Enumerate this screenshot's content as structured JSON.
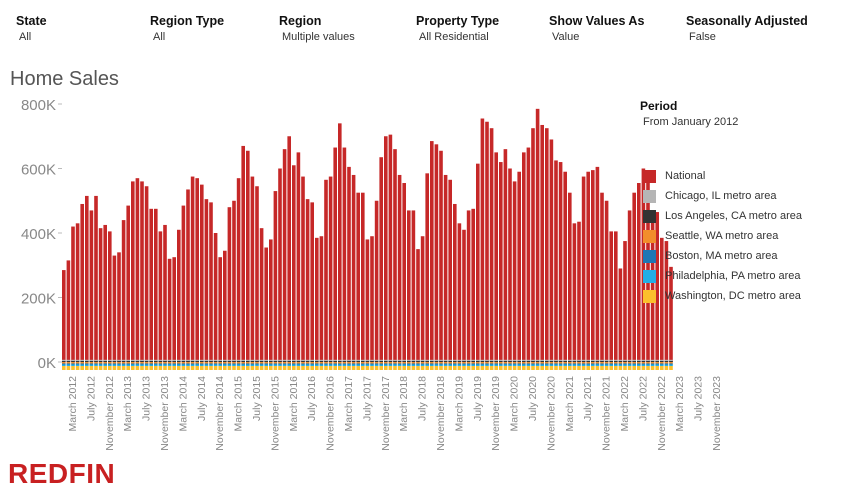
{
  "filters": [
    {
      "label": "State",
      "value": "All"
    },
    {
      "label": "Region Type",
      "value": "All"
    },
    {
      "label": "Region",
      "value": "Multiple values"
    },
    {
      "label": "Property Type",
      "value": "All Residential"
    },
    {
      "label": "Show Values As",
      "value": "Value"
    },
    {
      "label": "Seasonally Adjusted",
      "value": "False"
    }
  ],
  "period": {
    "label": "Period",
    "value": "From January 2012"
  },
  "logo": "REDFIN",
  "chart_data": {
    "type": "bar",
    "stacked": true,
    "title": "Home Sales",
    "xlabel": "",
    "ylabel": "",
    "ylim": [
      0,
      800000
    ],
    "y_ticks": [
      {
        "value": 0,
        "label": "0K"
      },
      {
        "value": 200000,
        "label": "200K"
      },
      {
        "value": 400000,
        "label": "400K"
      },
      {
        "value": 600000,
        "label": "600K"
      },
      {
        "value": 800000,
        "label": "800K"
      }
    ],
    "x_tick_labels": [
      "March 2012",
      "July 2012",
      "November 2012",
      "March 2013",
      "July 2013",
      "November 2013",
      "March 2014",
      "July 2014",
      "November 2014",
      "March 2015",
      "July 2015",
      "November 2015",
      "March 2016",
      "July 2016",
      "November 2016",
      "March 2017",
      "July 2017",
      "November 2017",
      "March 2018",
      "July 2018",
      "November 2018",
      "March 2019",
      "July 2019",
      "November 2019",
      "March 2020",
      "July 2020",
      "November 2020",
      "March 2021",
      "July 2021",
      "November 2021",
      "March 2022",
      "July 2022",
      "November 2022",
      "March 2023",
      "July 2023",
      "November 2023"
    ],
    "x_start": "January 2012",
    "x_end": "December 2023",
    "grid": false,
    "legend_position": "right",
    "series": [
      {
        "name": "National",
        "color": "#c62828",
        "values": [
          285000,
          315000,
          420000,
          430000,
          490000,
          515000,
          470000,
          515000,
          415000,
          425000,
          405000,
          330000,
          340000,
          440000,
          485000,
          560000,
          570000,
          560000,
          545000,
          475000,
          475000,
          405000,
          425000,
          320000,
          325000,
          410000,
          485000,
          535000,
          575000,
          570000,
          550000,
          505000,
          495000,
          400000,
          325000,
          345000,
          480000,
          500000,
          570000,
          670000,
          655000,
          575000,
          545000,
          415000,
          355000,
          380000,
          530000,
          600000,
          660000,
          700000,
          610000,
          650000,
          575000,
          505000,
          495000,
          385000,
          390000,
          565000,
          575000,
          665000,
          740000,
          665000,
          605000,
          580000,
          525000,
          525000,
          380000,
          390000,
          500000,
          635000,
          700000,
          705000,
          660000,
          580000,
          555000,
          470000,
          470000,
          350000,
          390000,
          585000,
          685000,
          675000,
          655000,
          580000,
          565000,
          490000,
          430000,
          410000,
          470000,
          475000,
          615000,
          755000,
          745000,
          725000,
          650000,
          620000,
          660000,
          600000,
          560000,
          590000,
          650000,
          665000,
          725000,
          785000,
          735000,
          725000,
          690000,
          625000,
          620000,
          590000,
          525000,
          430000,
          435000,
          575000,
          590000,
          595000,
          605000,
          525000,
          500000,
          405000,
          405000,
          290000,
          375000,
          470000,
          525000,
          555000,
          600000,
          575000,
          470000,
          465000,
          385000,
          375000,
          295000
        ]
      },
      {
        "name": "Chicago, IL metro area",
        "color": "#b5b5b5",
        "values": []
      },
      {
        "name": "Los Angeles, CA metro area",
        "color": "#333333",
        "values": []
      },
      {
        "name": "Seattle, WA metro area",
        "color": "#f28e2b",
        "values": []
      },
      {
        "name": "Boston, MA metro area",
        "color": "#1f77b4",
        "values": []
      },
      {
        "name": "Philadelphia, PA metro area",
        "color": "#22aee5",
        "values": []
      },
      {
        "name": "Washington, DC metro area",
        "color": "#fbc02d",
        "values": []
      }
    ]
  }
}
